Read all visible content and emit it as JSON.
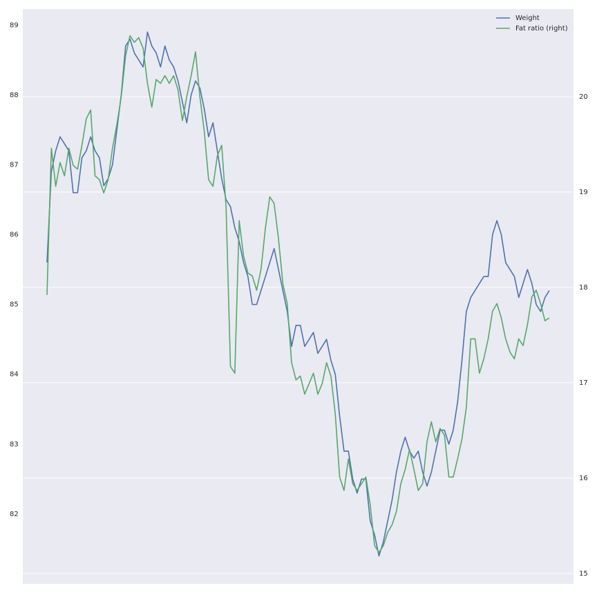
{
  "chart_data": {
    "type": "line",
    "series": [
      {
        "name": "Weight",
        "color": "#4c72b0",
        "axis": "y",
        "values": [
          85.6,
          86.9,
          87.2,
          87.4,
          87.3,
          87.2,
          86.6,
          86.6,
          87.1,
          87.2,
          87.4,
          87.2,
          87.1,
          86.7,
          86.8,
          87.0,
          87.5,
          88.0,
          88.7,
          88.8,
          88.6,
          88.5,
          88.4,
          88.9,
          88.7,
          88.6,
          88.4,
          88.7,
          88.5,
          88.4,
          88.2,
          87.9,
          87.6,
          88.0,
          88.2,
          88.1,
          87.8,
          87.4,
          87.6,
          87.2,
          86.8,
          86.5,
          86.4,
          86.1,
          85.9,
          85.6,
          85.4,
          85.0,
          85.0,
          85.2,
          85.4,
          85.6,
          85.8,
          85.5,
          85.2,
          84.9,
          84.4,
          84.7,
          84.7,
          84.4,
          84.5,
          84.6,
          84.3,
          84.4,
          84.5,
          84.2,
          84.0,
          83.4,
          82.9,
          82.9,
          82.5,
          82.3,
          82.5,
          82.5,
          81.9,
          81.7,
          81.4,
          81.6,
          81.9,
          82.2,
          82.6,
          82.9,
          83.1,
          82.9,
          82.8,
          82.9,
          82.6,
          82.4,
          82.6,
          82.9,
          83.2,
          83.2,
          83.0,
          83.2,
          83.6,
          84.2,
          84.9,
          85.1,
          85.2,
          85.3,
          85.4,
          85.4,
          86.0,
          86.2,
          86.0,
          85.6,
          85.5,
          85.4,
          85.1,
          85.3,
          85.5,
          85.3,
          85.0,
          84.9,
          85.1,
          85.2
        ]
      },
      {
        "name": "Fat ratio (right)",
        "color": "#55a868",
        "axis": "y2",
        "values": [
          17.92,
          19.46,
          19.06,
          19.31,
          19.17,
          19.46,
          19.28,
          19.24,
          19.49,
          19.77,
          19.86,
          19.17,
          19.13,
          18.99,
          19.13,
          19.46,
          19.71,
          20.0,
          20.43,
          20.64,
          20.57,
          20.62,
          20.51,
          20.14,
          19.89,
          20.18,
          20.14,
          20.22,
          20.14,
          20.22,
          20.07,
          19.75,
          20.0,
          20.22,
          20.47,
          20.0,
          19.64,
          19.13,
          19.06,
          19.38,
          19.49,
          18.84,
          17.17,
          17.1,
          18.7,
          18.33,
          18.15,
          18.12,
          17.97,
          18.19,
          18.62,
          18.95,
          18.88,
          18.51,
          18.04,
          17.83,
          17.21,
          17.03,
          17.07,
          16.88,
          16.99,
          17.1,
          16.88,
          16.99,
          17.21,
          17.07,
          16.67,
          16.01,
          15.87,
          16.2,
          15.94,
          15.87,
          15.94,
          16.01,
          15.72,
          15.29,
          15.22,
          15.29,
          15.43,
          15.51,
          15.65,
          15.94,
          16.09,
          16.3,
          16.09,
          15.87,
          15.94,
          16.38,
          16.59,
          16.38,
          16.52,
          16.45,
          16.01,
          16.01,
          16.2,
          16.41,
          16.74,
          17.46,
          17.46,
          17.1,
          17.25,
          17.46,
          17.75,
          17.83,
          17.68,
          17.46,
          17.32,
          17.25,
          17.46,
          17.39,
          17.61,
          17.9,
          17.97,
          17.83,
          17.65,
          17.68
        ]
      }
    ],
    "ylim": [
      81.0,
      89.23
    ],
    "yticks": [
      82,
      83,
      84,
      85,
      86,
      87,
      88,
      89
    ],
    "y2lim": [
      14.89,
      20.92
    ],
    "y2ticks": [
      15,
      16,
      17,
      18,
      19,
      20
    ],
    "grid": "y2",
    "legend": "upper right"
  }
}
